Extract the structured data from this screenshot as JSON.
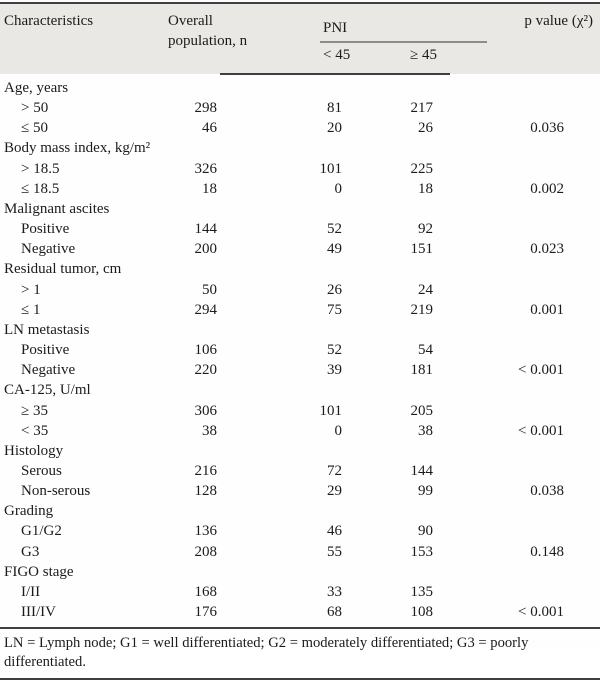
{
  "colors": {
    "header_bg": "#e9e8e5",
    "rule_dark": "#3f3f3f",
    "rule_light": "#8c8c8c",
    "text": "#1b1b1b",
    "page_bg": "#fefefe"
  },
  "table": {
    "header": {
      "characteristics": "Characteristics",
      "overall": "Overall\npopulation, n",
      "pni": "PNI",
      "pni_sub": [
        "< 45",
        "≥ 45"
      ],
      "p_value": "p value (χ²)"
    },
    "groups": [
      {
        "label": "Age, years",
        "rows": [
          {
            "label": "> 50",
            "overall": "298",
            "lt45": "81",
            "ge45": "217",
            "p": ""
          },
          {
            "label": "≤ 50",
            "overall": "46",
            "lt45": "20",
            "ge45": "26",
            "p": "0.036"
          }
        ]
      },
      {
        "label": "Body mass index, kg/m²",
        "rows": [
          {
            "label": "> 18.5",
            "overall": "326",
            "lt45": "101",
            "ge45": "225",
            "p": ""
          },
          {
            "label": "≤ 18.5",
            "overall": "18",
            "lt45": "0",
            "ge45": "18",
            "p": "0.002"
          }
        ]
      },
      {
        "label": "Malignant ascites",
        "rows": [
          {
            "label": "Positive",
            "overall": "144",
            "lt45": "52",
            "ge45": "92",
            "p": ""
          },
          {
            "label": "Negative",
            "overall": "200",
            "lt45": "49",
            "ge45": "151",
            "p": "0.023"
          }
        ]
      },
      {
        "label": "Residual tumor, cm",
        "rows": [
          {
            "label": "> 1",
            "overall": "50",
            "lt45": "26",
            "ge45": "24",
            "p": ""
          },
          {
            "label": "≤ 1",
            "overall": "294",
            "lt45": "75",
            "ge45": "219",
            "p": "0.001"
          }
        ]
      },
      {
        "label": "LN metastasis",
        "rows": [
          {
            "label": "Positive",
            "overall": "106",
            "lt45": "52",
            "ge45": "54",
            "p": ""
          },
          {
            "label": "Negative",
            "overall": "220",
            "lt45": "39",
            "ge45": "181",
            "p": "< 0.001"
          }
        ]
      },
      {
        "label": "CA-125, U/ml",
        "rows": [
          {
            "label": "≥ 35",
            "overall": "306",
            "lt45": "101",
            "ge45": "205",
            "p": ""
          },
          {
            "label": "< 35",
            "overall": "38",
            "lt45": "0",
            "ge45": "38",
            "p": "< 0.001"
          }
        ]
      },
      {
        "label": "Histology",
        "rows": [
          {
            "label": "Serous",
            "overall": "216",
            "lt45": "72",
            "ge45": "144",
            "p": ""
          },
          {
            "label": "Non-serous",
            "overall": "128",
            "lt45": "29",
            "ge45": "99",
            "p": "0.038"
          }
        ]
      },
      {
        "label": "Grading",
        "rows": [
          {
            "label": "G1/G2",
            "overall": "136",
            "lt45": "46",
            "ge45": "90",
            "p": ""
          },
          {
            "label": "G3",
            "overall": "208",
            "lt45": "55",
            "ge45": "153",
            "p": "0.148"
          }
        ]
      },
      {
        "label": "FIGO stage",
        "rows": [
          {
            "label": "I/II",
            "overall": "168",
            "lt45": "33",
            "ge45": "135",
            "p": ""
          },
          {
            "label": "III/IV",
            "overall": "176",
            "lt45": "68",
            "ge45": "108",
            "p": "< 0.001"
          }
        ]
      }
    ],
    "footnote": "LN = Lymph node; G1 = well differentiated; G2 = moderately differentiated; G3 = poorly differentiated."
  }
}
